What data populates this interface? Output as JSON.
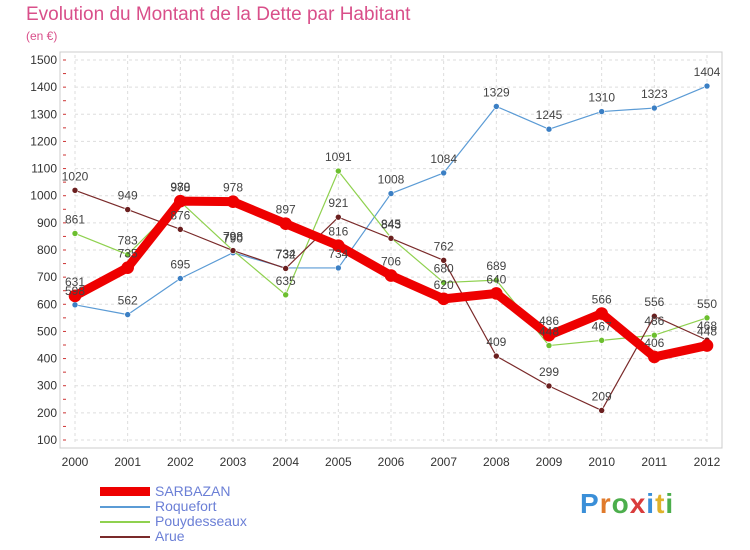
{
  "title": "Evolution du Montant de la Dette par Habitant",
  "subtitle": "(en €)",
  "logo": {
    "letters": [
      "P",
      "r",
      "o",
      "x",
      "i",
      "t",
      "i"
    ],
    "colors": [
      "#3a8fd8",
      "#e07a2b",
      "#4cae4c",
      "#d93c3c",
      "#3a8fd8",
      "#e0b22b",
      "#4cae4c"
    ]
  },
  "chart_data": {
    "type": "line",
    "x": [
      "2000",
      "2001",
      "2002",
      "2003",
      "2004",
      "2005",
      "2006",
      "2007",
      "2008",
      "2009",
      "2010",
      "2011",
      "2012"
    ],
    "ylim": [
      100,
      1500
    ],
    "yticks": [
      "100",
      "200",
      "300",
      "400",
      "500",
      "600",
      "700",
      "800",
      "900",
      "1000",
      "1100",
      "1200",
      "1300",
      "1400",
      "1500"
    ],
    "grid": true,
    "legend_position": "bottom-left",
    "series": [
      {
        "name": "Roquefort",
        "color": "#5b9bd5",
        "dot": "#3b7fc4",
        "width": 1.2,
        "values": [
          598,
          562,
          695,
          790,
          734,
          734,
          1008,
          1084,
          1329,
          1245,
          1310,
          1323,
          1404
        ],
        "labels": [
          "598",
          "562",
          "695",
          "790",
          "734",
          "734",
          "1008",
          "1084",
          "1329",
          "1245",
          "1310",
          "1323",
          "1404"
        ]
      },
      {
        "name": "Pouydesseaux",
        "color": "#8fd14f",
        "dot": "#6cbf2f",
        "width": 1.2,
        "values": [
          861,
          783,
          978,
          798,
          635,
          1091,
          845,
          680,
          689,
          448,
          467,
          486,
          550
        ],
        "labels": [
          "861",
          "783",
          "978",
          "798",
          "635",
          "1091",
          "845",
          "680",
          "689",
          "448",
          "467",
          "486",
          "550"
        ]
      },
      {
        "name": "Arue",
        "color": "#7a2a2a",
        "dot": "#6b1f1f",
        "width": 1.2,
        "values": [
          1020,
          949,
          876,
          798,
          732,
          921,
          843,
          762,
          409,
          299,
          209,
          556,
          468
        ],
        "labels": [
          "1020",
          "949",
          "876",
          "798",
          "732",
          "921",
          "843",
          "762",
          "409",
          "299",
          "209",
          "556",
          "468"
        ]
      },
      {
        "name": "SARBAZAN",
        "color": "#ee0000",
        "dot": "#ee0000",
        "width": 9,
        "values": [
          631,
          735,
          980,
          978,
          897,
          816,
          706,
          620,
          640,
          486,
          566,
          406,
          448
        ],
        "labels": [
          "631",
          "735",
          "980",
          "978",
          "897",
          "816",
          "706",
          "620",
          "640",
          "486",
          "566",
          "406",
          "448"
        ]
      }
    ]
  },
  "legend": [
    {
      "name": "SARBAZAN",
      "color": "#ee0000",
      "width": 9
    },
    {
      "name": "Roquefort",
      "color": "#5b9bd5",
      "width": 2
    },
    {
      "name": "Pouydesseaux",
      "color": "#8fd14f",
      "width": 2
    },
    {
      "name": "Arue",
      "color": "#7a2a2a",
      "width": 2
    }
  ]
}
